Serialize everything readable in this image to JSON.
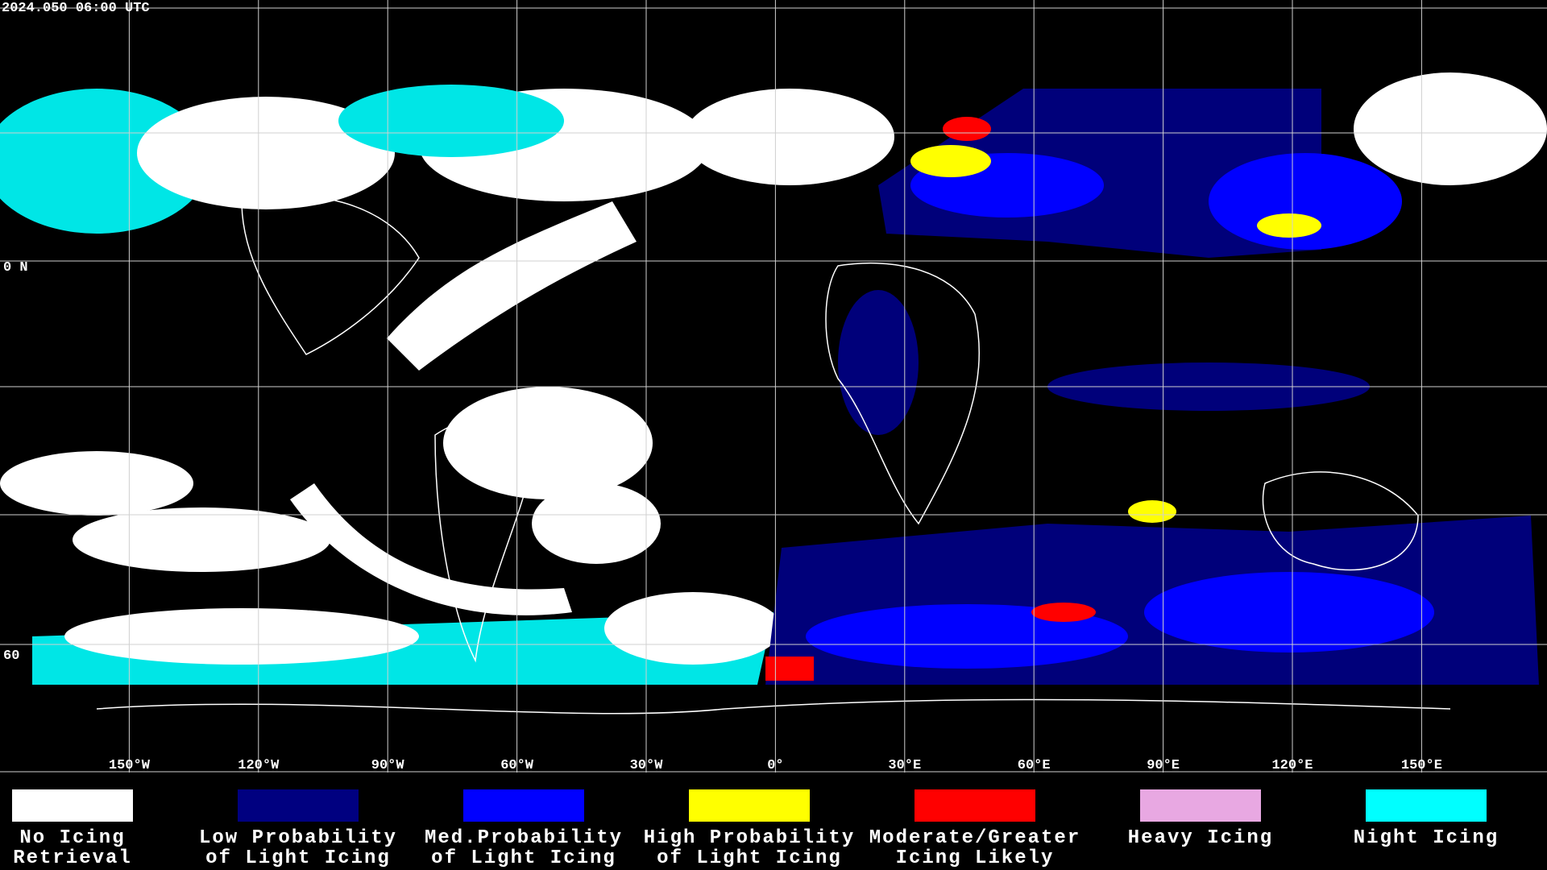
{
  "header": {
    "timestamp": "2024.050 06:00 UTC"
  },
  "map": {
    "longitude_labels": [
      "150°W",
      "120°W",
      "90°W",
      "60°W",
      "30°W",
      "0°",
      "30°E",
      "60°E",
      "90°E",
      "120°E",
      "150°E"
    ],
    "latitude_labels": [
      "0 N",
      "60"
    ]
  },
  "legend": [
    {
      "lines": [
        "No Icing",
        "Retrieval"
      ],
      "color": "#ffffff"
    },
    {
      "lines": [
        "Low Probability",
        "of Light Icing"
      ],
      "color": "#000080"
    },
    {
      "lines": [
        "Med.Probability",
        "of Light Icing"
      ],
      "color": "#0000ff"
    },
    {
      "lines": [
        "High Probability",
        "of Light Icing"
      ],
      "color": "#ffff00"
    },
    {
      "lines": [
        "Moderate/Greater",
        "Icing Likely"
      ],
      "color": "#ff0000"
    },
    {
      "lines": [
        "Heavy Icing"
      ],
      "color": "#e8a8e2"
    },
    {
      "lines": [
        "Night Icing"
      ],
      "color": "#00ffff"
    }
  ]
}
